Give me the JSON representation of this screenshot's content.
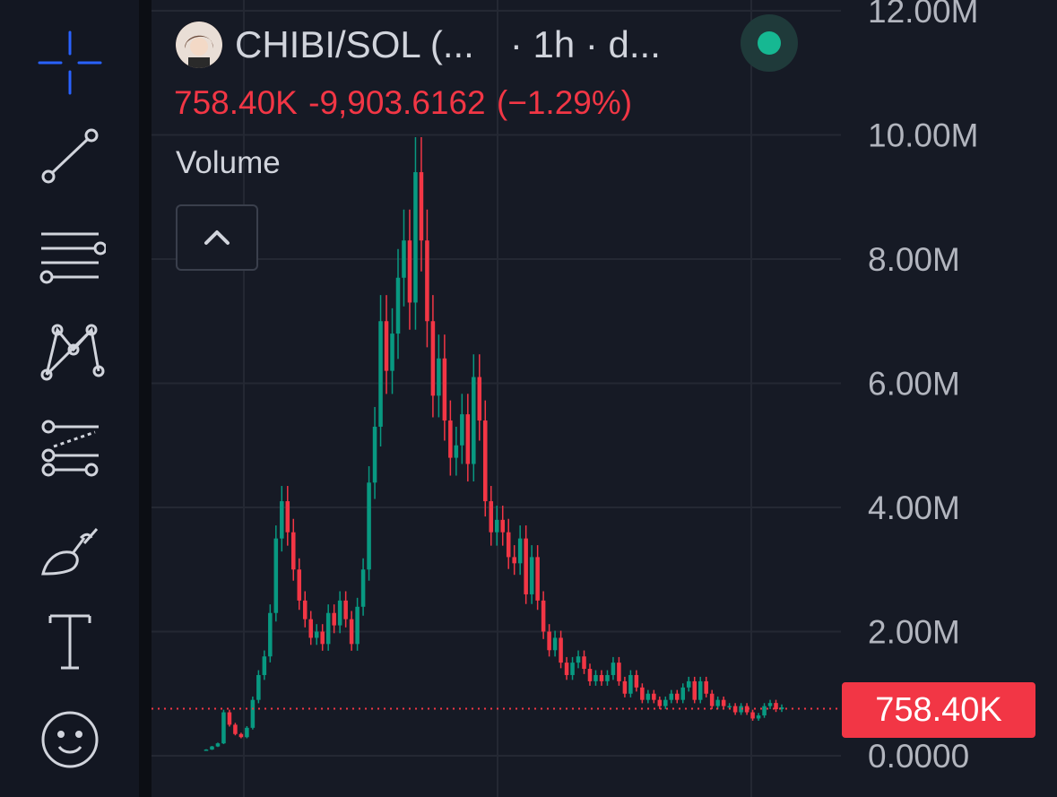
{
  "header": {
    "symbol_title": "CHIBI/SOL (...",
    "interval_text": "· 1h · d...",
    "price_line": "758.40K  -9,903.6162 (−1.29%)",
    "volume_label": "Volume",
    "status": "online"
  },
  "toolbar": {
    "items": [
      "crosshair",
      "trend-line",
      "fib-retracement",
      "pattern",
      "prediction",
      "brush",
      "text",
      "emoji"
    ]
  },
  "colors": {
    "background": "#161a25",
    "up": "#089981",
    "down": "#f23645",
    "text": "#d1d4dc",
    "axis_text": "#b2b5be",
    "accent": "#2962ff",
    "status": "#16b892"
  },
  "price_badge": "758.40K",
  "chart_data": {
    "type": "candlestick",
    "title": "CHIBI/SOL",
    "interval": "1h",
    "last_price": 758400,
    "change": -9903.6162,
    "change_pct": -1.29,
    "y_ticks": [
      "0.0000",
      "2.00M",
      "4.00M",
      "6.00M",
      "8.00M",
      "10.00M",
      "12.00M"
    ],
    "ylim": [
      0,
      12000000
    ],
    "grid": true,
    "close_series_approx": [
      100000,
      150000,
      200000,
      700000,
      500000,
      350000,
      300000,
      450000,
      900000,
      1300000,
      1600000,
      2300000,
      3500000,
      4100000,
      3600000,
      3000000,
      2500000,
      2200000,
      1900000,
      2000000,
      1800000,
      2300000,
      2100000,
      2500000,
      2200000,
      1800000,
      2400000,
      3000000,
      4400000,
      5300000,
      7000000,
      6200000,
      6800000,
      7700000,
      8300000,
      7300000,
      9400000,
      8300000,
      7000000,
      5800000,
      6400000,
      5400000,
      4800000,
      5000000,
      5500000,
      4700000,
      6100000,
      5400000,
      4100000,
      3600000,
      3800000,
      3600000,
      3200000,
      3100000,
      3500000,
      2600000,
      3200000,
      2500000,
      2000000,
      1700000,
      1900000,
      1500000,
      1300000,
      1500000,
      1600000,
      1400000,
      1200000,
      1300000,
      1200000,
      1300000,
      1500000,
      1200000,
      1000000,
      1300000,
      1100000,
      900000,
      1000000,
      900000,
      800000,
      900000,
      1000000,
      900000,
      1100000,
      1200000,
      900000,
      1200000,
      1000000,
      800000,
      900000,
      800000,
      800000,
      700000,
      800000,
      700000,
      600000,
      650000,
      800000,
      850000,
      750000,
      780000
    ],
    "up_color": "#089981",
    "down_color": "#f23645"
  }
}
